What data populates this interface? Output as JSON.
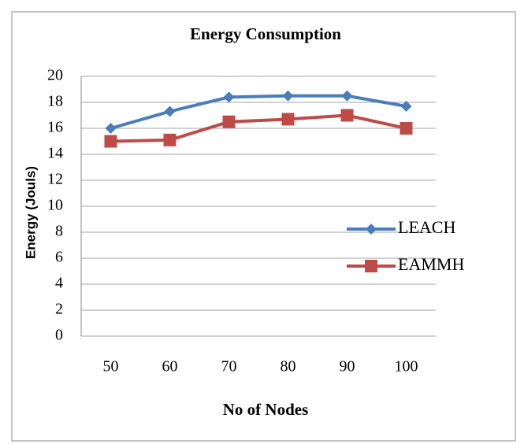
{
  "chart_data": {
    "type": "line",
    "title": "Energy Consumption",
    "x_label": "No of Nodes",
    "y_label": "Energy (Jouls)",
    "categories": [
      "50",
      "60",
      "70",
      "80",
      "90",
      "100"
    ],
    "series": [
      {
        "name": "LEACH",
        "color": "#4a7ebb",
        "marker": "diamond",
        "values": [
          16,
          17.3,
          18.4,
          18.5,
          18.5,
          17.7
        ]
      },
      {
        "name": "EAMMH",
        "color": "#be4b48",
        "marker": "square",
        "values": [
          15,
          15.1,
          16.5,
          16.7,
          17,
          16
        ]
      }
    ],
    "ylim": [
      0,
      20
    ],
    "yticks": [
      0,
      2,
      4,
      6,
      8,
      10,
      12,
      14,
      16,
      18,
      20
    ],
    "grid": true,
    "legend": "right"
  }
}
